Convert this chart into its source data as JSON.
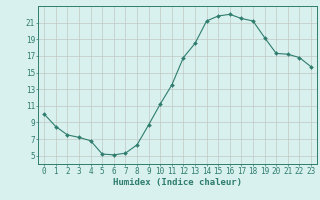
{
  "x": [
    0,
    1,
    2,
    3,
    4,
    5,
    6,
    7,
    8,
    9,
    10,
    11,
    12,
    13,
    14,
    15,
    16,
    17,
    18,
    19,
    20,
    21,
    22,
    23
  ],
  "y": [
    10.0,
    8.5,
    7.5,
    7.2,
    6.8,
    5.2,
    5.1,
    5.3,
    6.3,
    8.7,
    11.2,
    13.5,
    16.8,
    18.5,
    21.2,
    21.8,
    22.0,
    21.5,
    21.2,
    19.2,
    17.3,
    17.2,
    16.8,
    15.7
  ],
  "line_color": "#2e7d6e",
  "marker": "D",
  "marker_size": 2.0,
  "bg_color": "#d8f0ee",
  "grid_color": "#c0c8c4",
  "axis_color": "#2e7d6e",
  "xlabel": "Humidex (Indice chaleur)",
  "xlabel_fontsize": 6.5,
  "tick_fontsize": 5.5,
  "ylim": [
    4,
    23
  ],
  "xlim": [
    -0.5,
    23.5
  ],
  "yticks": [
    5,
    7,
    9,
    11,
    13,
    15,
    17,
    19,
    21
  ],
  "xticks": [
    0,
    1,
    2,
    3,
    4,
    5,
    6,
    7,
    8,
    9,
    10,
    11,
    12,
    13,
    14,
    15,
    16,
    17,
    18,
    19,
    20,
    21,
    22,
    23
  ]
}
